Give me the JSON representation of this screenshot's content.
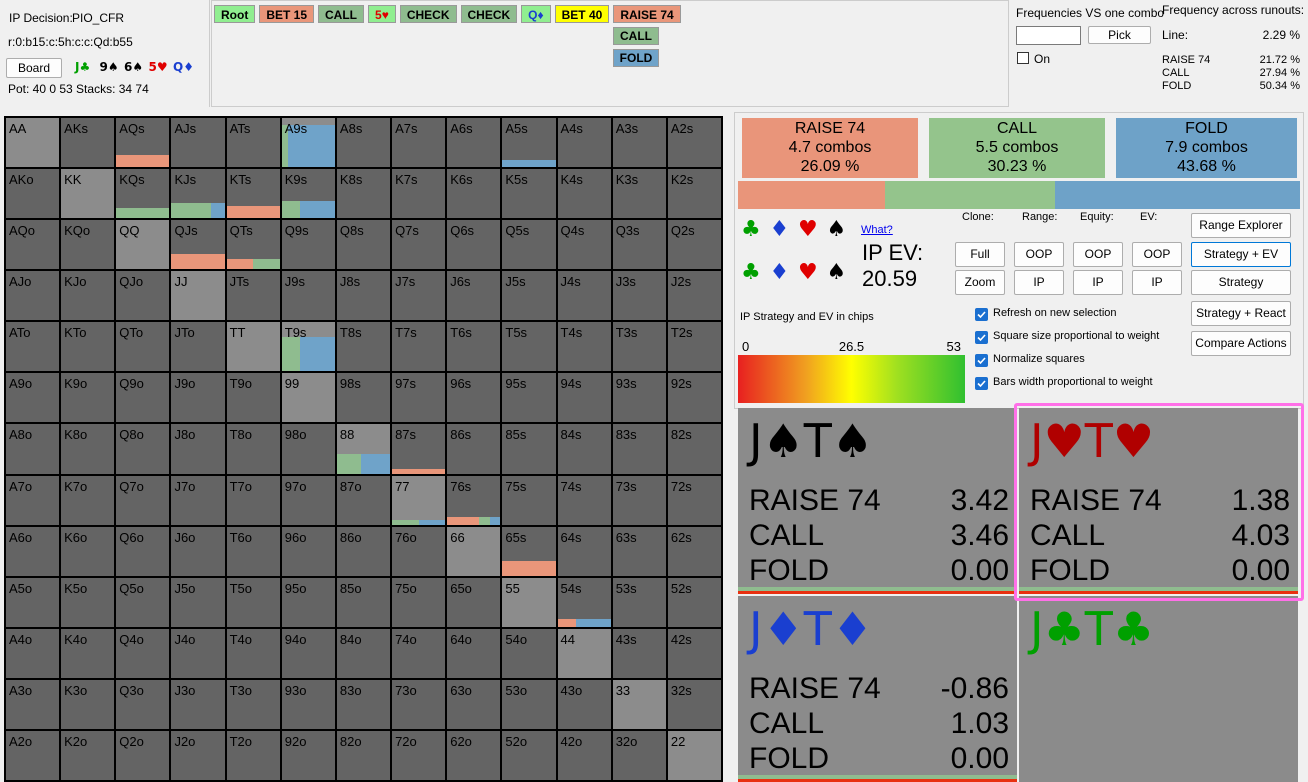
{
  "header": {
    "decision_label": "IP Decision:",
    "solver": "PIO_CFR",
    "line_code": "r:0:b15:c:5h:c:c:Qd:b55",
    "board_button": "Board",
    "board_cards": [
      {
        "text": "J♣",
        "color": "#00a000"
      },
      {
        "text": "9♠",
        "color": "#000000"
      },
      {
        "text": "6♠",
        "color": "#000000"
      },
      {
        "text": "5♥",
        "color": "#e00000"
      },
      {
        "text": "Q♦",
        "color": "#1a3fd0"
      }
    ],
    "pot": "Pot: 40 0 53 Stacks: 34 74"
  },
  "action_line": {
    "items": [
      {
        "label": "Root",
        "bg": "#90ee90",
        "fg": "#000000"
      },
      {
        "label": "BET 15",
        "bg": "#e9967a",
        "fg": "#000000"
      },
      {
        "label": "CALL",
        "bg": "#8fbc8f",
        "fg": "#000000"
      },
      {
        "label": "5♥",
        "bg": "#90ee90",
        "fg": "#e00000"
      },
      {
        "label": "CHECK",
        "bg": "#8fbc8f",
        "fg": "#000000"
      },
      {
        "label": "CHECK",
        "bg": "#8fbc8f",
        "fg": "#000000"
      },
      {
        "label": "Q♦",
        "bg": "#90ee90",
        "fg": "#1a3fd0"
      },
      {
        "label": "BET 40",
        "bg": "#ffff00",
        "fg": "#000000"
      },
      {
        "label": "RAISE 74",
        "bg": "#e9967a",
        "fg": "#000000"
      }
    ],
    "options": [
      {
        "label": "CALL",
        "bg": "#8fbc8f",
        "fg": "#000000"
      },
      {
        "label": "FOLD",
        "bg": "#6fa3c9",
        "fg": "#000000"
      }
    ]
  },
  "frequencies": {
    "title": "Frequencies VS one combo",
    "pick": "Pick",
    "on": "On",
    "across_title": "Frequency across runouts:",
    "line_label": "Line:",
    "line_value": "2.29 %",
    "rows": [
      {
        "action": "RAISE 74",
        "value": "21.72 %"
      },
      {
        "action": "CALL",
        "value": "27.94 %"
      },
      {
        "action": "FOLD",
        "value": "50.34 %"
      }
    ]
  },
  "grid": {
    "rows": [
      [
        "AA",
        "AKs",
        "AQs",
        "AJs",
        "ATs",
        "A9s",
        "A8s",
        "A7s",
        "A6s",
        "A5s",
        "A4s",
        "A3s",
        "A2s"
      ],
      [
        "AKo",
        "KK",
        "KQs",
        "KJs",
        "KTs",
        "K9s",
        "K8s",
        "K7s",
        "K6s",
        "K5s",
        "K4s",
        "K3s",
        "K2s"
      ],
      [
        "AQo",
        "KQo",
        "QQ",
        "QJs",
        "QTs",
        "Q9s",
        "Q8s",
        "Q7s",
        "Q6s",
        "Q5s",
        "Q4s",
        "Q3s",
        "Q2s"
      ],
      [
        "AJo",
        "KJo",
        "QJo",
        "JJ",
        "JTs",
        "J9s",
        "J8s",
        "J7s",
        "J6s",
        "J5s",
        "J4s",
        "J3s",
        "J2s"
      ],
      [
        "ATo",
        "KTo",
        "QTo",
        "JTo",
        "TT",
        "T9s",
        "T8s",
        "T7s",
        "T6s",
        "T5s",
        "T4s",
        "T3s",
        "T2s"
      ],
      [
        "A9o",
        "K9o",
        "Q9o",
        "J9o",
        "T9o",
        "99",
        "98s",
        "97s",
        "96s",
        "95s",
        "94s",
        "93s",
        "92s"
      ],
      [
        "A8o",
        "K8o",
        "Q8o",
        "J8o",
        "T8o",
        "98o",
        "88",
        "87s",
        "86s",
        "85s",
        "84s",
        "83s",
        "82s"
      ],
      [
        "A7o",
        "K7o",
        "Q7o",
        "J7o",
        "T7o",
        "97o",
        "87o",
        "77",
        "76s",
        "75s",
        "74s",
        "73s",
        "72s"
      ],
      [
        "A6o",
        "K6o",
        "Q6o",
        "J6o",
        "T6o",
        "96o",
        "86o",
        "76o",
        "66",
        "65s",
        "64s",
        "63s",
        "62s"
      ],
      [
        "A5o",
        "K5o",
        "Q5o",
        "J5o",
        "T5o",
        "95o",
        "85o",
        "75o",
        "65o",
        "55",
        "54s",
        "53s",
        "52s"
      ],
      [
        "A4o",
        "K4o",
        "Q4o",
        "J4o",
        "T4o",
        "94o",
        "84o",
        "74o",
        "64o",
        "54o",
        "44",
        "43s",
        "42s"
      ],
      [
        "A3o",
        "K3o",
        "Q3o",
        "J3o",
        "T3o",
        "93o",
        "83o",
        "73o",
        "63o",
        "53o",
        "43o",
        "33",
        "32s"
      ],
      [
        "A2o",
        "K2o",
        "Q2o",
        "J2o",
        "T2o",
        "92o",
        "82o",
        "72o",
        "62o",
        "52o",
        "42o",
        "32o",
        "22"
      ]
    ],
    "active": [
      "AA",
      "KK",
      "QQ",
      "JJ",
      "TT",
      "99",
      "88",
      "77",
      "66",
      "55",
      "44",
      "33",
      "22",
      "A9s",
      "T9s"
    ],
    "colors": {
      "raise": "#e9967a",
      "call": "#8fbc8f",
      "fold": "#6fa3c9"
    },
    "strategy": {
      "AQs": {
        "weight": 0.25,
        "raise": 1,
        "call": 0,
        "fold": 0
      },
      "A9s": {
        "weight": 0.85,
        "raise": 0,
        "call": 0.12,
        "fold": 0.88
      },
      "A5s": {
        "weight": 0.15,
        "raise": 0,
        "call": 0,
        "fold": 1
      },
      "KQs": {
        "weight": 0.2,
        "raise": 0,
        "call": 1,
        "fold": 0
      },
      "KJs": {
        "weight": 0.3,
        "raise": 0,
        "call": 0.75,
        "fold": 0.25
      },
      "KTs": {
        "weight": 0.25,
        "raise": 1,
        "call": 0,
        "fold": 0
      },
      "K9s": {
        "weight": 0.35,
        "raise": 0,
        "call": 0.35,
        "fold": 0.65
      },
      "QJs": {
        "weight": 0.3,
        "raise": 1,
        "call": 0,
        "fold": 0
      },
      "QTs": {
        "weight": 0.2,
        "raise": 0.5,
        "call": 0.5,
        "fold": 0
      },
      "T9s": {
        "weight": 0.7,
        "raise": 0,
        "call": 0.35,
        "fold": 0.65
      },
      "88": {
        "weight": 0.4,
        "raise": 0,
        "call": 0.45,
        "fold": 0.55
      },
      "87s": {
        "weight": 0.1,
        "raise": 1,
        "call": 0,
        "fold": 0
      },
      "77": {
        "weight": 0.1,
        "raise": 0,
        "call": 0.5,
        "fold": 0.5
      },
      "76s": {
        "weight": 0.15,
        "raise": 0.6,
        "call": 0.2,
        "fold": 0.2
      },
      "65s": {
        "weight": 0.3,
        "raise": 1,
        "call": 0,
        "fold": 0
      },
      "54s": {
        "weight": 0.15,
        "raise": 0.35,
        "call": 0,
        "fold": 0.65
      }
    }
  },
  "summary": {
    "actions": [
      {
        "name": "RAISE 74",
        "combos": "4.7 combos",
        "pct": 26.09,
        "pct_label": "26.09 %",
        "color": "#e9957a"
      },
      {
        "name": "CALL",
        "combos": "5.5 combos",
        "pct": 30.23,
        "pct_label": "30.23 %",
        "color": "#94c48c"
      },
      {
        "name": "FOLD",
        "combos": "7.9 combos",
        "pct": 43.68,
        "pct_label": "43.68 %",
        "color": "#6ea2c8"
      }
    ]
  },
  "controls": {
    "suits": [
      [
        {
          "s": "♣",
          "color": "#00a000"
        },
        {
          "s": "♦",
          "color": "#1a3fd0"
        },
        {
          "s": "♥",
          "color": "#e00000"
        },
        {
          "s": "♠",
          "color": "#000000"
        }
      ],
      [
        {
          "s": "♣",
          "color": "#00a000"
        },
        {
          "s": "♦",
          "color": "#1a3fd0"
        },
        {
          "s": "♥",
          "color": "#e00000"
        },
        {
          "s": "♠",
          "color": "#000000"
        }
      ]
    ],
    "what": "What?",
    "ev_label": "IP EV:",
    "ev_value": "20.59",
    "clone_headers": [
      "Clone:",
      "Range:",
      "Equity:",
      "EV:"
    ],
    "clone_buttons": [
      "Full",
      "Zoom"
    ],
    "side_buttons": [
      [
        "OOP",
        "IP"
      ],
      [
        "OOP",
        "IP"
      ],
      [
        "OOP",
        "IP"
      ]
    ],
    "view_buttons": [
      "Range Explorer",
      "Strategy + EV",
      "Strategy",
      "Strategy + React",
      "Compare Actions"
    ],
    "scale_title": "IP Strategy and EV in chips",
    "scale_ticks": [
      0,
      26.5,
      53
    ],
    "checkboxes": [
      "Refresh on new selection",
      "Square size proportional to weight",
      "Normalize squares",
      "Bars width proportional to weight"
    ]
  },
  "cards": [
    {
      "title": "J♠T♠",
      "color": "#000000",
      "rows": [
        {
          "action": "RAISE 74",
          "ev": "3.42"
        },
        {
          "action": "CALL",
          "ev": "3.46"
        },
        {
          "action": "FOLD",
          "ev": "0.00"
        }
      ]
    },
    {
      "title": "J♥T♥",
      "color": "#b00000",
      "rows": [
        {
          "action": "RAISE 74",
          "ev": "1.38"
        },
        {
          "action": "CALL",
          "ev": "4.03"
        },
        {
          "action": "FOLD",
          "ev": "0.00"
        }
      ]
    },
    {
      "title": "J♦T♦",
      "color": "#1a3fd0",
      "rows": [
        {
          "action": "RAISE 74",
          "ev": "-0.86"
        },
        {
          "action": "CALL",
          "ev": "1.03"
        },
        {
          "action": "FOLD",
          "ev": "0.00"
        }
      ]
    },
    {
      "title": "J♣T♣",
      "color": "#00a000",
      "rows": []
    }
  ]
}
